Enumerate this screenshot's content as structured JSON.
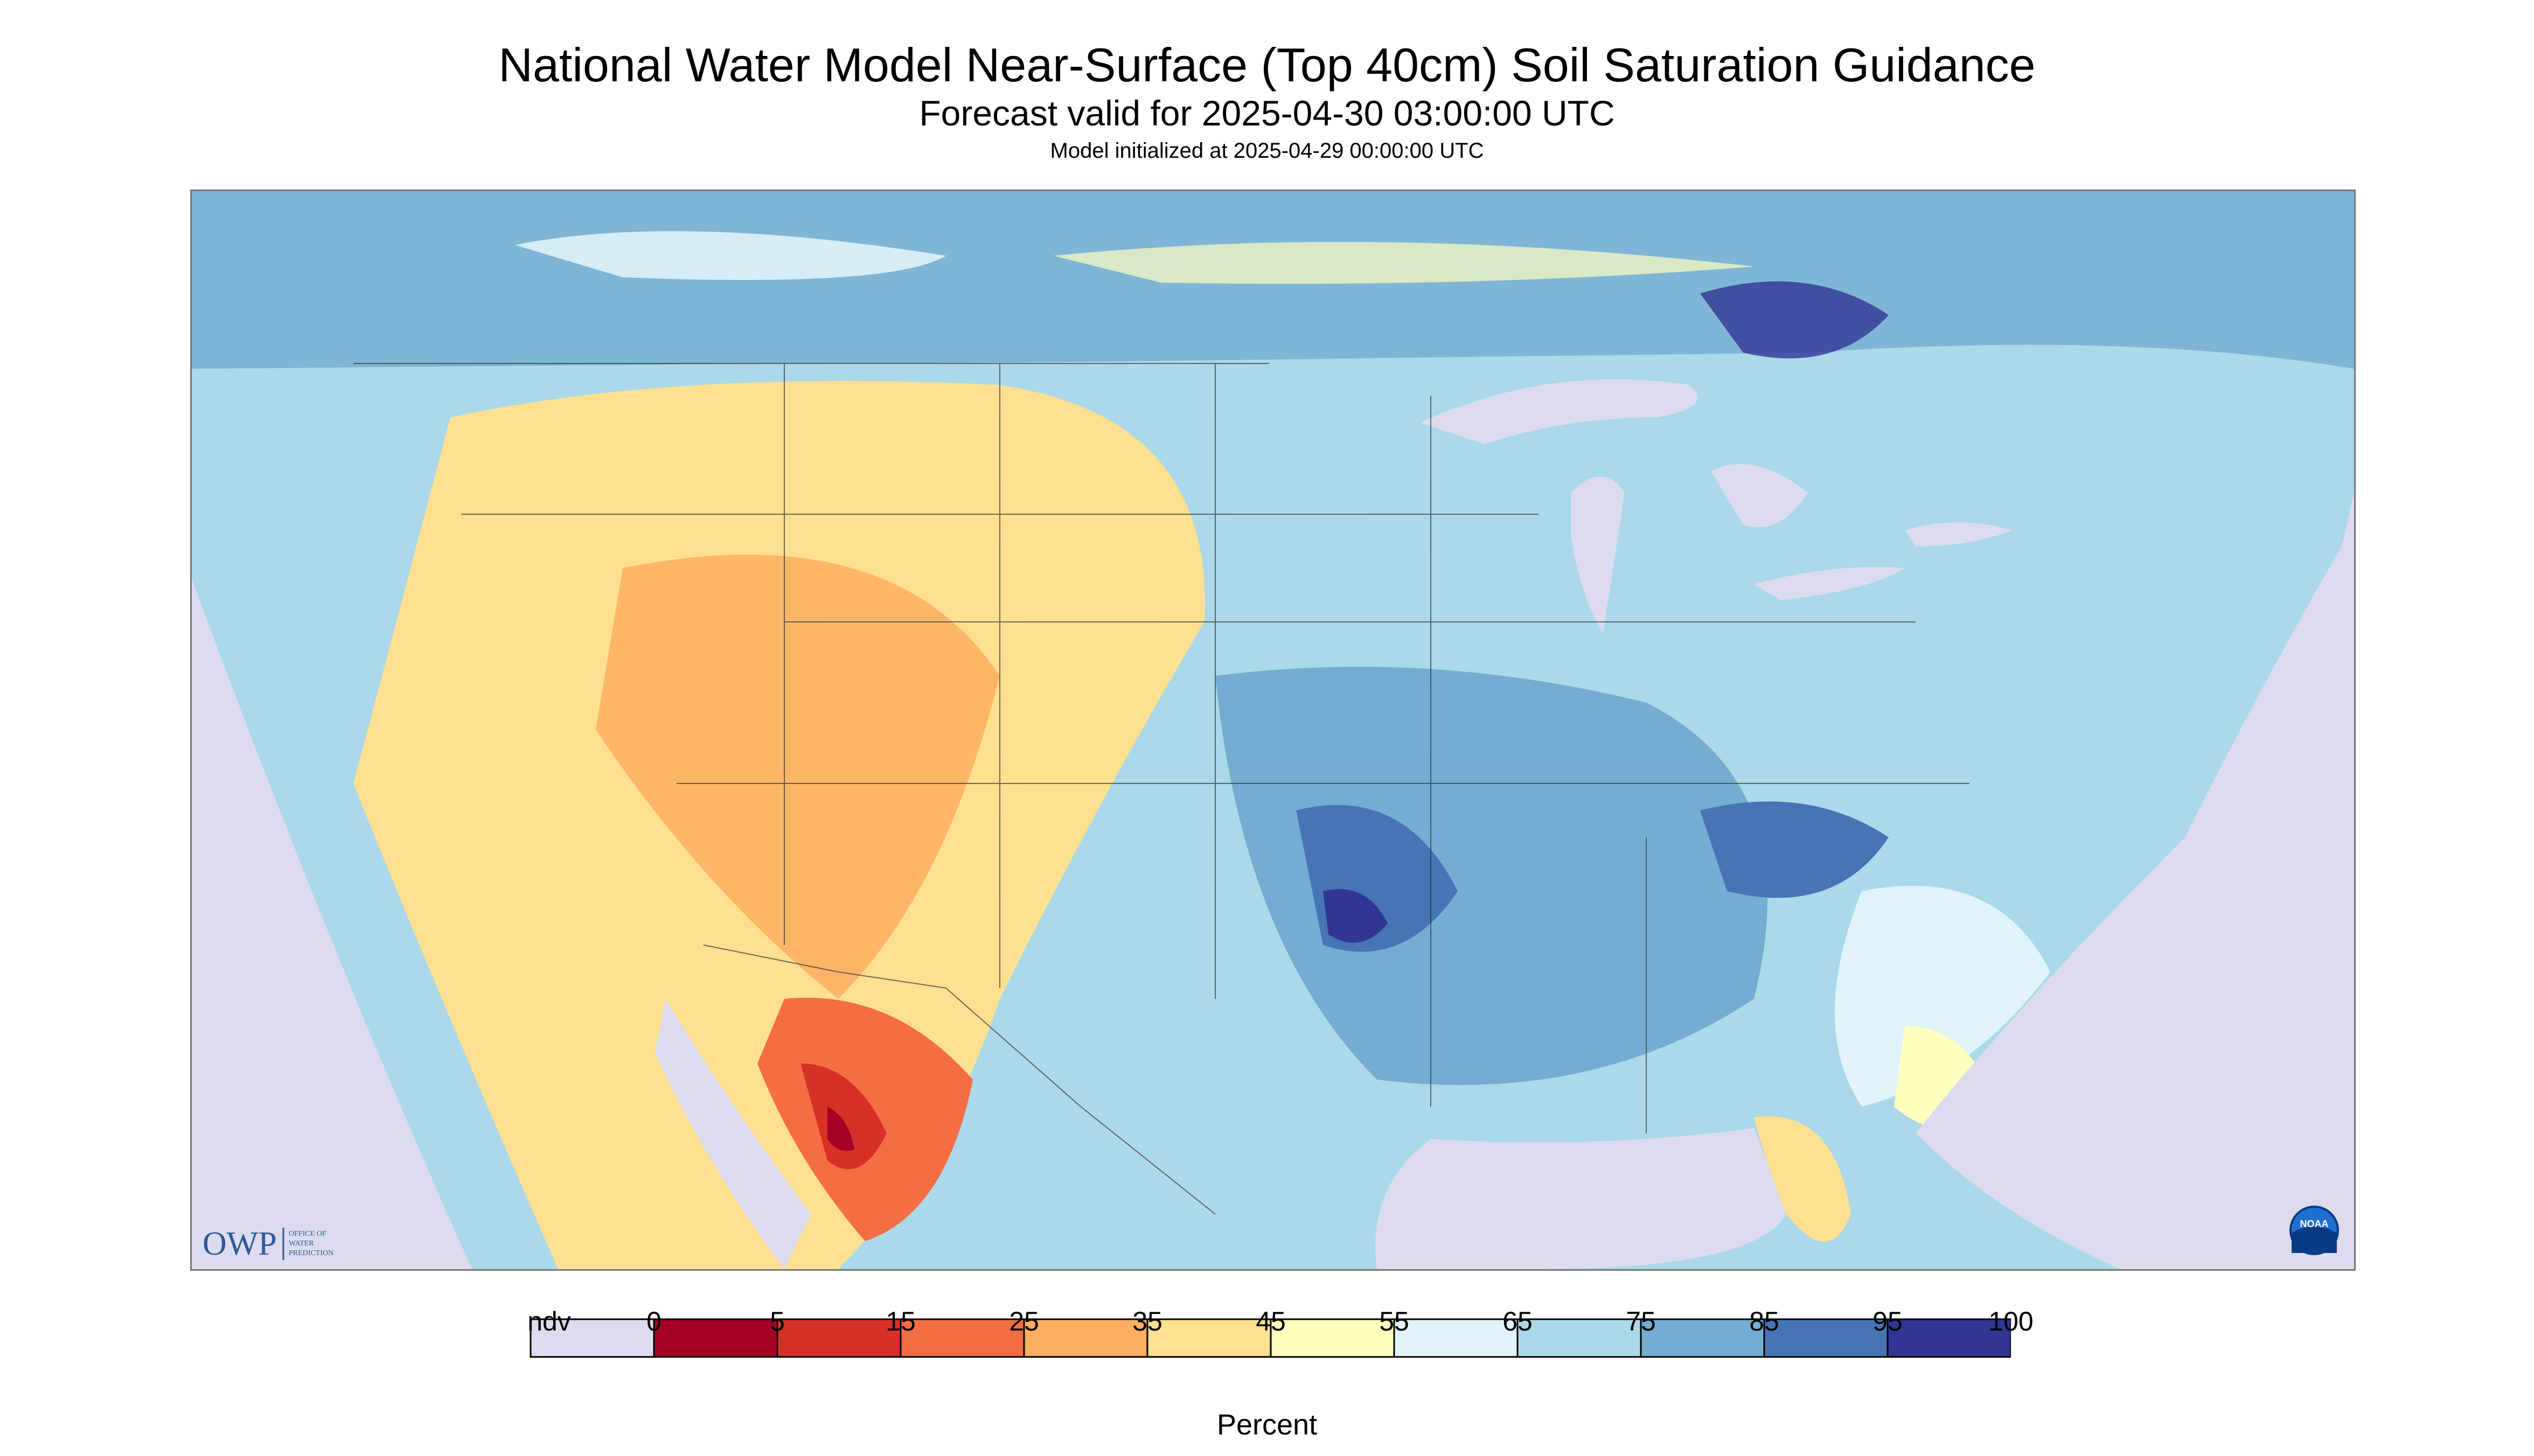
{
  "title": "National Water Model Near-Surface (Top 40cm) Soil Saturation Guidance",
  "subtitle": "Forecast valid for 2025-04-30 03:00:00 UTC",
  "init_text": "Model initialized at 2025-04-29 00:00:00 UTC",
  "map": {
    "region": "Contiguous United States, southern Canada, northern Mexico",
    "logo_owp": {
      "abbr": "OWP",
      "text": "OFFICE OF WATER PREDICTION"
    },
    "logo_noaa": {
      "text": "NOAA"
    }
  },
  "legend": {
    "unit_label": "Percent",
    "tick_labels": [
      "ndv",
      "0",
      "5",
      "15",
      "25",
      "35",
      "45",
      "55",
      "65",
      "75",
      "85",
      "95",
      "100"
    ],
    "colors": [
      "#dcdcee",
      "#a50026",
      "#d73027",
      "#f46d43",
      "#fdae61",
      "#fee090",
      "#ffffbf",
      "#e0f3f8",
      "#abd9e9",
      "#74add1",
      "#4575b4",
      "#313695"
    ]
  }
}
